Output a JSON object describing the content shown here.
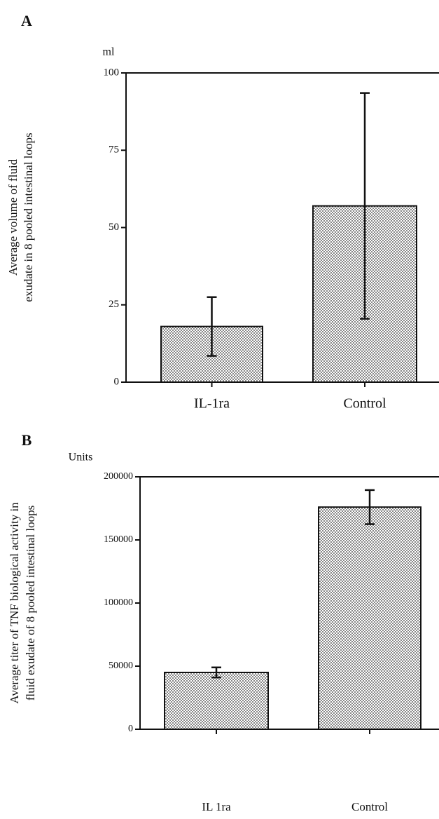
{
  "chart_data": [
    {
      "type": "bar",
      "panel": "A",
      "unit": "ml",
      "y_label": [
        "Average volume of fluid",
        "exudate in 8 pooled intestinal loops"
      ],
      "categories": [
        "IL-1ra",
        "Control"
      ],
      "values": [
        18,
        57
      ],
      "errors": [
        9.5,
        36.5
      ],
      "color": "#bdbdbd",
      "ylim": [
        0,
        100
      ],
      "yticks": [
        0,
        25,
        50,
        75,
        100
      ]
    },
    {
      "type": "bar",
      "panel": "B",
      "unit": "Units",
      "y_label": [
        "Average titer of TNF biological activity in",
        "fluid exudate of 8 pooled intestinal loops"
      ],
      "categories": [
        "IL 1ra",
        "Control"
      ],
      "values": [
        45000,
        176000
      ],
      "errors": [
        4000,
        13500
      ],
      "color": "#bdbdbd",
      "ylim": [
        0,
        200000
      ],
      "yticks": [
        0,
        50000,
        100000,
        150000,
        200000
      ]
    }
  ]
}
